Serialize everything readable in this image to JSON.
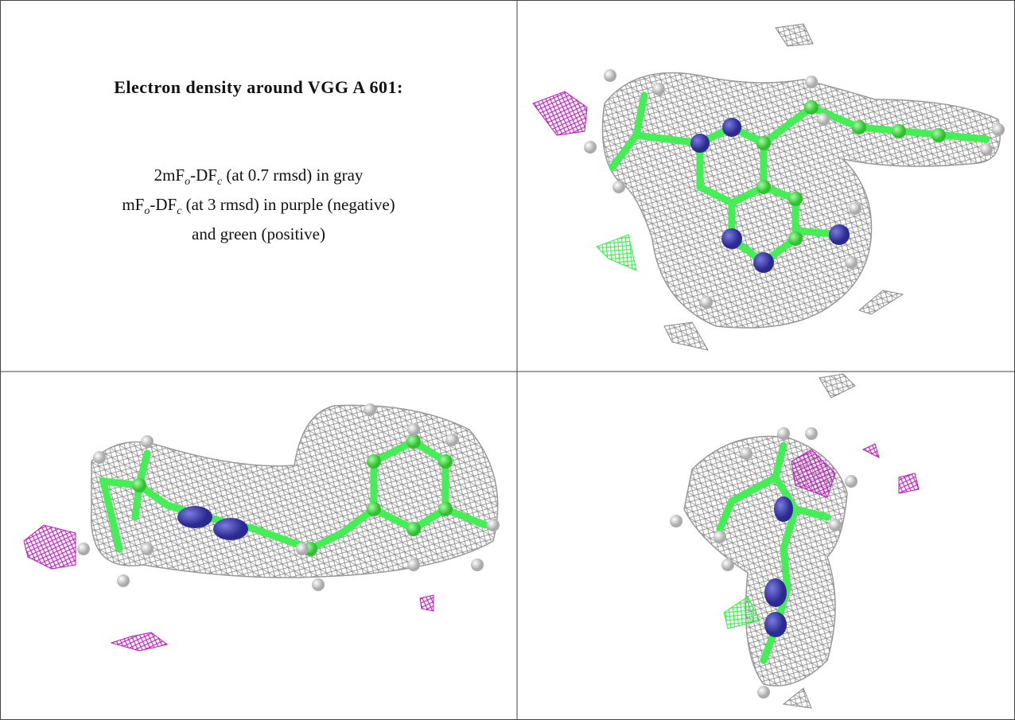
{
  "legend": {
    "title": "Electron density around VGG A 601:",
    "lines": [
      [
        "2mF",
        "o",
        "-DF",
        "c",
        " (at 0.7 rmsd) in gray"
      ],
      [
        "mF",
        "o",
        "-DF",
        "c",
        " (at 3 rmsd) in purple (negative)"
      ],
      [
        "and green (positive)"
      ]
    ]
  }
}
